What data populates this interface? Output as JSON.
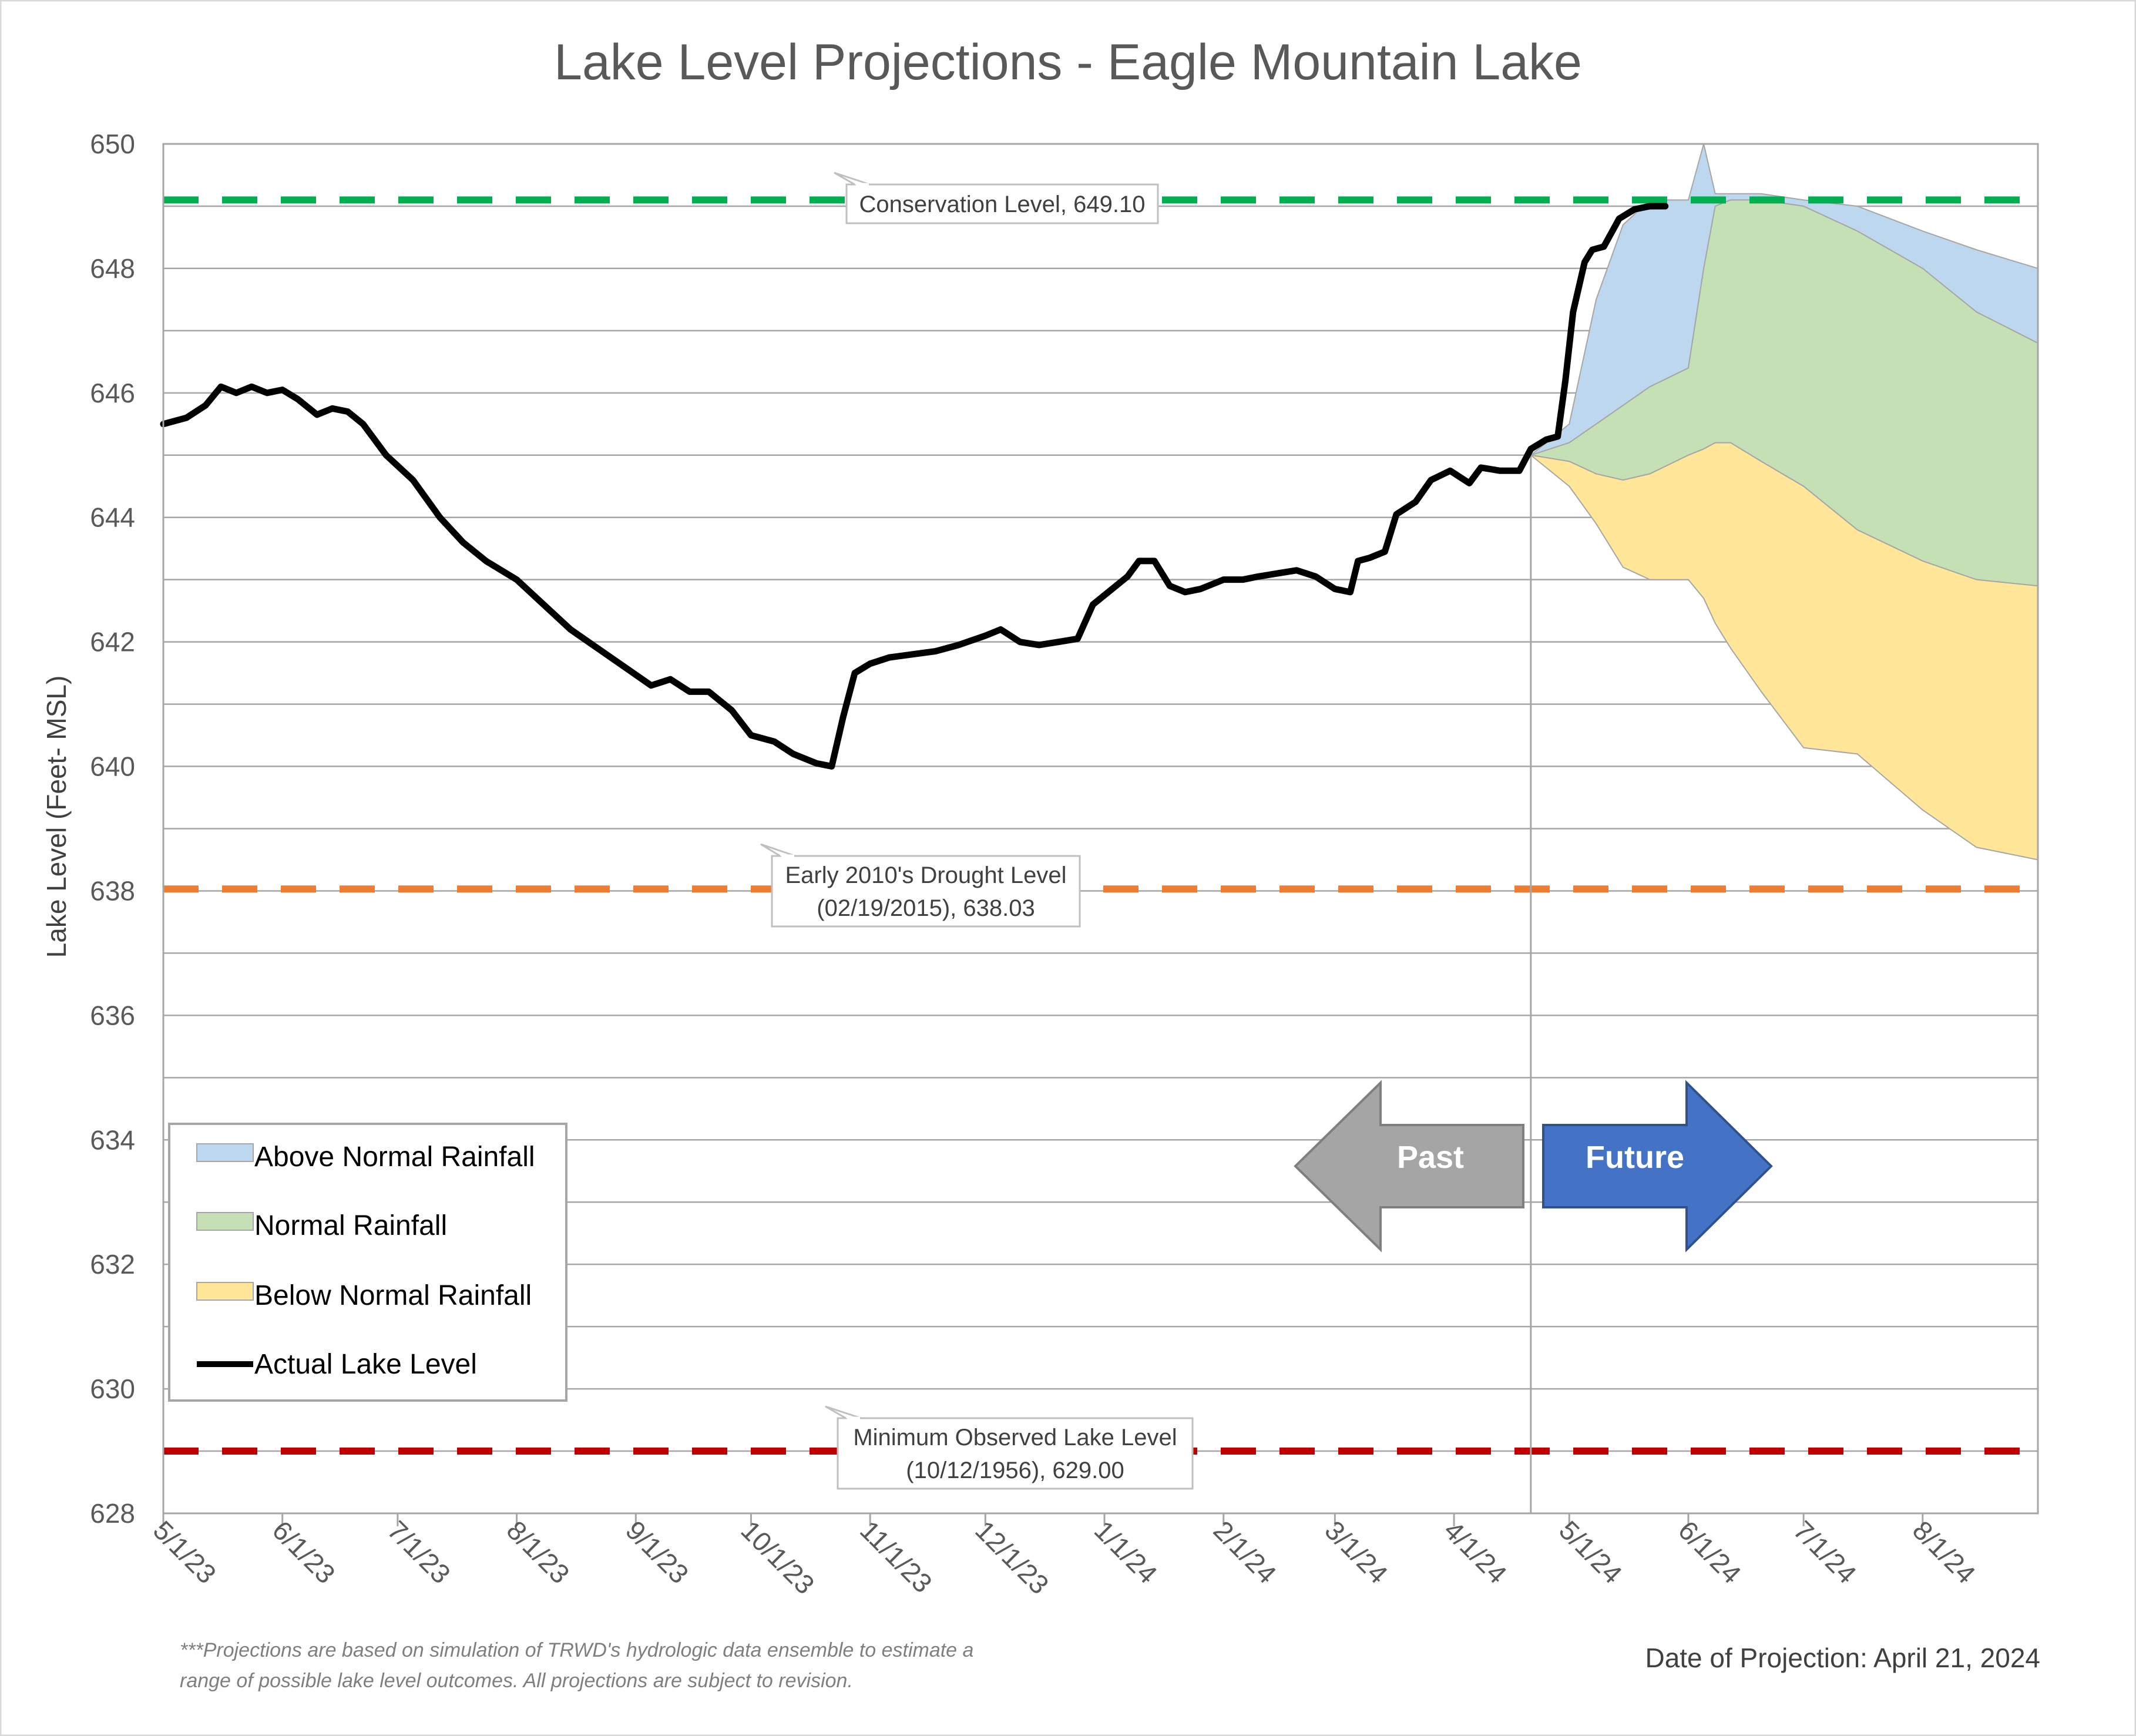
{
  "chart_data": {
    "type": "line",
    "title": "Lake Level Projections - Eagle Mountain Lake",
    "ylabel": "Lake Level (Feet- MSL)",
    "xlabel": "",
    "ylim": [
      628,
      650
    ],
    "y_ticks": [
      "628",
      "630",
      "632",
      "634",
      "636",
      "638",
      "640",
      "642",
      "644",
      "646",
      "648",
      "650"
    ],
    "x_ticks": [
      "5/1/23",
      "6/1/23",
      "7/1/23",
      "8/1/23",
      "9/1/23",
      "10/1/23",
      "11/1/23",
      "12/1/23",
      "1/1/24",
      "2/1/24",
      "3/1/24",
      "4/1/24",
      "5/1/24",
      "6/1/24",
      "7/1/24",
      "8/1/24"
    ],
    "x_range": [
      "5/1/23",
      "8/31/24"
    ],
    "projection_date": "4/21/24",
    "grid": true,
    "legend_position": "bottom-left",
    "reference_lines": [
      {
        "name": "Conservation Level",
        "value": 649.1,
        "color": "#00b050",
        "label": "Conservation Level, 649.10"
      },
      {
        "name": "Early 2010's Drought Level",
        "value": 638.03,
        "color": "#ed7d31",
        "label_lines": [
          "Early 2010's Drought Level",
          "(02/19/2015), 638.03"
        ]
      },
      {
        "name": "Minimum Observed Lake Level",
        "value": 629.0,
        "color": "#c00000",
        "label_lines": [
          "Minimum Observed Lake Level",
          "(10/12/1956), 629.00"
        ]
      }
    ],
    "series": [
      {
        "name": "Above Normal Rainfall",
        "type": "area",
        "color": "#bdd7ee",
        "x": [
          "4/21/24",
          "5/1/24",
          "5/8/24",
          "5/15/24",
          "5/22/24",
          "6/1/24",
          "6/5/24",
          "6/8/24",
          "6/12/24",
          "6/20/24",
          "7/1/24",
          "7/15/24",
          "8/1/24",
          "8/15/24",
          "8/31/24"
        ],
        "upper": [
          645.0,
          645.5,
          647.5,
          648.7,
          649.1,
          649.1,
          650.0,
          649.2,
          649.2,
          649.2,
          649.1,
          649.0,
          648.6,
          648.3,
          648.0
        ],
        "lower": [
          645.0,
          645.2,
          645.5,
          645.8,
          646.1,
          646.4,
          648.0,
          649.0,
          649.1,
          649.1,
          649.0,
          648.6,
          648.0,
          647.3,
          646.8
        ]
      },
      {
        "name": "Normal Rainfall",
        "type": "area",
        "color": "#c5e0b4",
        "x": [
          "4/21/24",
          "5/1/24",
          "5/8/24",
          "5/15/24",
          "5/22/24",
          "6/1/24",
          "6/5/24",
          "6/8/24",
          "6/12/24",
          "6/20/24",
          "7/1/24",
          "7/15/24",
          "8/1/24",
          "8/15/24",
          "8/31/24"
        ],
        "upper": [
          645.0,
          645.2,
          645.5,
          645.8,
          646.1,
          646.4,
          648.0,
          649.0,
          649.1,
          649.1,
          649.0,
          648.6,
          648.0,
          647.3,
          646.8
        ],
        "lower": [
          645.0,
          644.9,
          644.7,
          644.6,
          644.7,
          645.0,
          645.1,
          645.2,
          645.2,
          644.9,
          644.5,
          643.8,
          643.3,
          643.0,
          642.9
        ]
      },
      {
        "name": "Below Normal Rainfall",
        "type": "area",
        "color": "#ffe699",
        "x": [
          "4/21/24",
          "5/1/24",
          "5/8/24",
          "5/15/24",
          "5/22/24",
          "6/1/24",
          "6/5/24",
          "6/8/24",
          "6/12/24",
          "6/20/24",
          "7/1/24",
          "7/15/24",
          "8/1/24",
          "8/15/24",
          "8/31/24"
        ],
        "upper": [
          645.0,
          644.9,
          644.7,
          644.6,
          644.7,
          645.0,
          645.1,
          645.2,
          645.2,
          644.9,
          644.5,
          643.8,
          643.3,
          643.0,
          642.9
        ],
        "lower": [
          645.0,
          644.5,
          643.9,
          643.2,
          643.0,
          643.0,
          642.7,
          642.3,
          641.9,
          641.2,
          640.3,
          640.2,
          639.3,
          638.7,
          638.5
        ]
      },
      {
        "name": "Actual Lake Level",
        "type": "line",
        "color": "#000000",
        "x": [
          "5/1/23",
          "5/7/23",
          "5/12/23",
          "5/16/23",
          "5/20/23",
          "5/24/23",
          "5/28/23",
          "6/1/23",
          "6/5/23",
          "6/10/23",
          "6/14/23",
          "6/18/23",
          "6/22/23",
          "6/28/23",
          "7/5/23",
          "7/12/23",
          "7/18/23",
          "7/24/23",
          "8/1/23",
          "8/8/23",
          "8/15/23",
          "8/22/23",
          "8/29/23",
          "9/5/23",
          "9/10/23",
          "9/15/23",
          "9/20/23",
          "9/26/23",
          "10/1/23",
          "10/7/23",
          "10/12/23",
          "10/18/23",
          "10/22/23",
          "10/25/23",
          "10/28/23",
          "11/1/23",
          "11/6/23",
          "11/12/23",
          "11/18/23",
          "11/24/23",
          "12/1/23",
          "12/5/23",
          "12/10/23",
          "12/15/23",
          "12/20/23",
          "12/25/23",
          "12/29/23",
          "1/3/24",
          "1/7/24",
          "1/10/24",
          "1/14/24",
          "1/18/24",
          "1/22/24",
          "1/26/24",
          "2/1/24",
          "2/6/24",
          "2/10/24",
          "2/15/24",
          "2/20/24",
          "2/25/24",
          "3/1/24",
          "3/5/24",
          "3/7/24",
          "3/10/24",
          "3/14/24",
          "3/17/24",
          "3/22/24",
          "3/26/24",
          "3/31/24",
          "4/5/24",
          "4/8/24",
          "4/13/24",
          "4/18/24",
          "4/21/24",
          "4/25/24",
          "4/28/24",
          "4/30/24",
          "5/2/24",
          "5/5/24",
          "5/7/24",
          "5/10/24",
          "5/14/24",
          "5/18/24",
          "5/22/24",
          "5/26/24"
        ],
        "values": [
          645.5,
          645.6,
          645.8,
          646.1,
          646.0,
          646.1,
          646.0,
          646.05,
          645.9,
          645.65,
          645.75,
          645.7,
          645.5,
          645.0,
          644.6,
          644.0,
          643.6,
          643.3,
          643.0,
          642.6,
          642.2,
          641.9,
          641.6,
          641.3,
          641.4,
          641.2,
          641.2,
          640.9,
          640.5,
          640.4,
          640.2,
          640.05,
          640.0,
          640.8,
          641.5,
          641.65,
          641.75,
          641.8,
          641.85,
          641.95,
          642.1,
          642.2,
          642.0,
          641.95,
          642.0,
          642.05,
          642.6,
          642.85,
          643.05,
          643.3,
          643.3,
          642.9,
          642.8,
          642.85,
          643.0,
          643.0,
          643.05,
          643.1,
          643.15,
          643.05,
          642.85,
          642.8,
          643.3,
          643.35,
          643.45,
          644.05,
          644.25,
          644.6,
          644.75,
          644.55,
          644.8,
          644.75,
          644.75,
          645.1,
          645.25,
          645.3,
          646.2,
          647.3,
          648.1,
          648.3,
          648.35,
          648.8,
          648.95,
          649.0,
          649.0
        ]
      }
    ]
  },
  "annotations": {
    "past_arrow_label": "Past",
    "future_arrow_label": "Future",
    "past_color": "#a5a5a5",
    "future_color": "#4472c4",
    "footnote_line1": "***Projections are based on simulation of TRWD's hydrologic data ensemble to estimate a",
    "footnote_line2": "range of possible lake level outcomes.  All projections are subject to revision.",
    "projection_date_text": "Date of Projection: April 21, 2024"
  }
}
